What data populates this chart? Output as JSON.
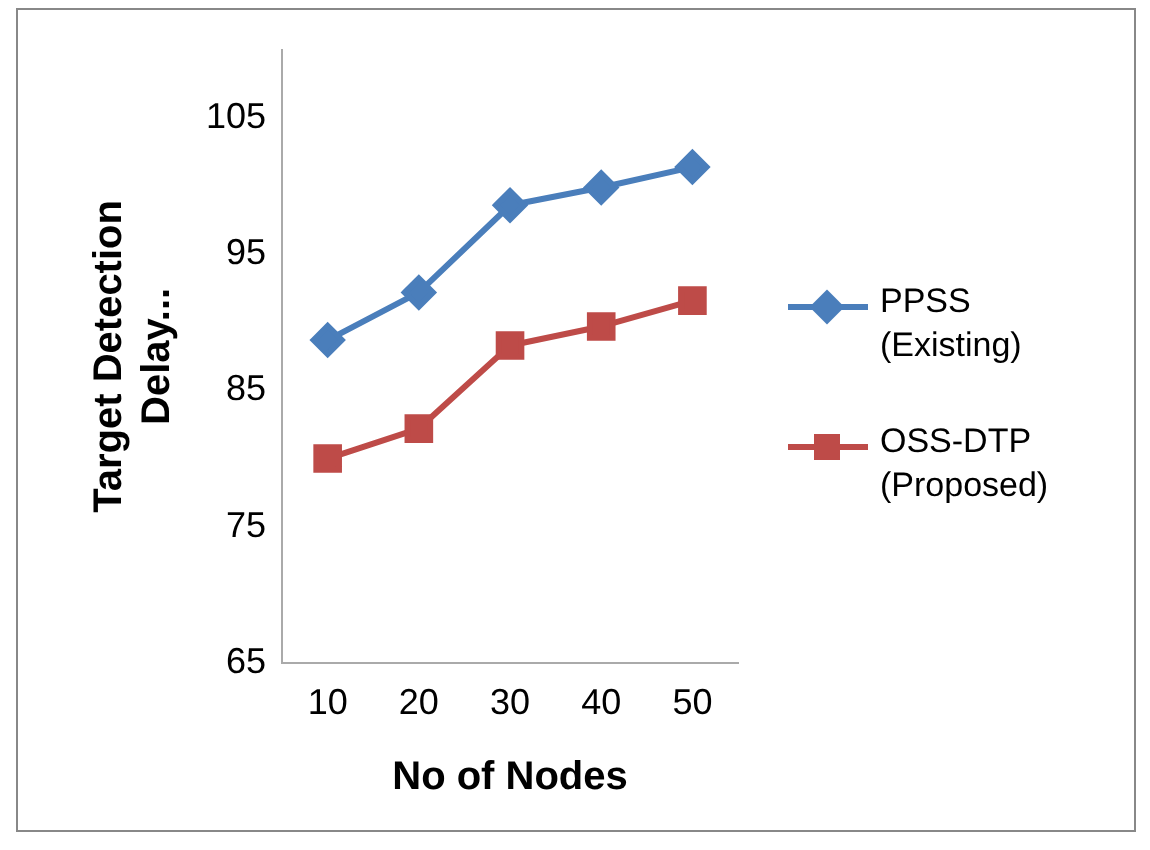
{
  "chart_data": {
    "type": "line",
    "xlabel": "No of Nodes",
    "ylabel": "Target Detection Delay...",
    "categories": [
      "10",
      "20",
      "30",
      "40",
      "50"
    ],
    "series": [
      {
        "name": "PPSS (Existing)",
        "color": "#4a7ebb",
        "values": [
          88.7,
          92.2,
          98.6,
          99.9,
          101.4
        ],
        "marker": "diamond"
      },
      {
        "name": "OSS-DTP (Proposed)",
        "color": "#be4b48",
        "values": [
          80.0,
          82.2,
          88.3,
          89.7,
          91.6
        ],
        "marker": "square"
      }
    ],
    "ylim": [
      65,
      110
    ],
    "yticks": [
      65,
      75,
      85,
      95,
      105
    ],
    "grid": false,
    "legend": "right",
    "line_style": "solid"
  }
}
